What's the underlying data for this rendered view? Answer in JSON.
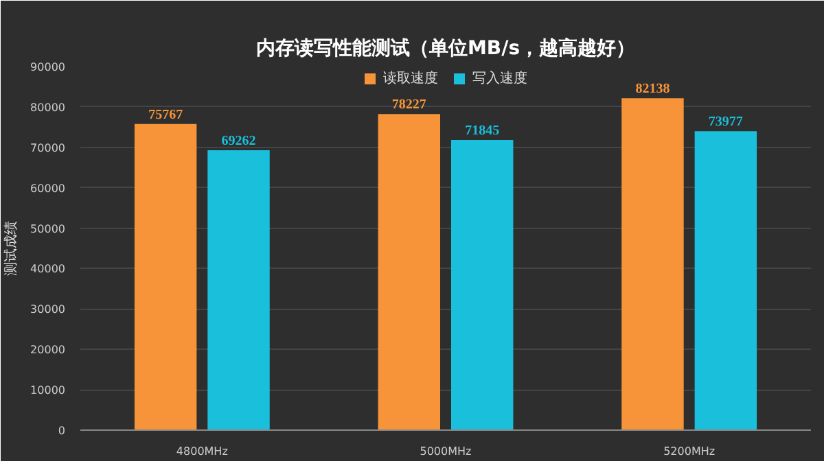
{
  "chart_data": {
    "type": "bar",
    "title": "内存读写性能测试（单位MB/s，越高越好）",
    "ylabel": "测试成绩",
    "categories": [
      "4800MHz",
      "5000MHz",
      "5200MHz"
    ],
    "series": [
      {
        "name": "读取速度",
        "color": "#f7943a",
        "values": [
          75767,
          78227,
          82138
        ]
      },
      {
        "name": "写入速度",
        "color": "#1abfdc",
        "values": [
          69262,
          71845,
          73977
        ]
      }
    ],
    "ylim": [
      0,
      90000
    ],
    "yticks": [
      0,
      10000,
      20000,
      30000,
      40000,
      50000,
      60000,
      70000,
      80000,
      90000
    ],
    "grid": "y",
    "legend": "top",
    "data_labels": true
  }
}
